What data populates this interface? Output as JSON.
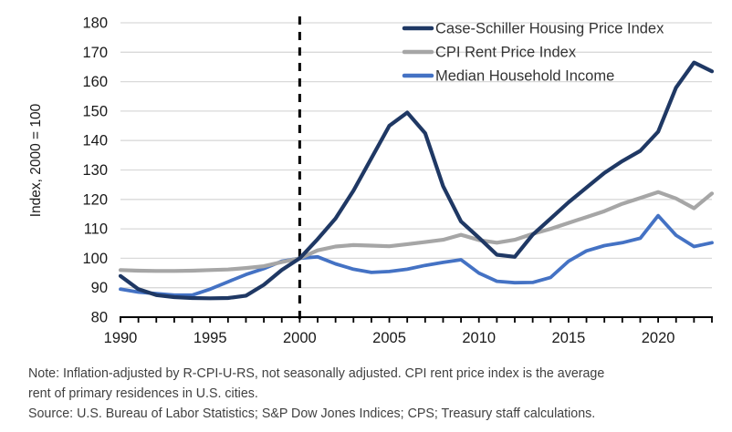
{
  "chart_data": {
    "type": "line",
    "title": "",
    "xlabel": "",
    "ylabel": "Index, 2000 = 100",
    "xlim": [
      1990,
      2023
    ],
    "ylim": [
      80,
      180
    ],
    "y_ticks": [
      80,
      90,
      100,
      110,
      120,
      130,
      140,
      150,
      160,
      170,
      180
    ],
    "x_labeled_ticks": [
      1990,
      1995,
      2000,
      2005,
      2010,
      2015,
      2020
    ],
    "x_minor_tick_every": 1,
    "grid": "horizontal",
    "legend_position": "top-right-inside",
    "x": [
      1990,
      1991,
      1992,
      1993,
      1994,
      1995,
      1996,
      1997,
      1998,
      1999,
      2000,
      2001,
      2002,
      2003,
      2004,
      2005,
      2006,
      2007,
      2008,
      2009,
      2010,
      2011,
      2012,
      2013,
      2014,
      2015,
      2016,
      2017,
      2018,
      2019,
      2020,
      2021,
      2022,
      2023
    ],
    "series": [
      {
        "name": "Case-Schiller Housing Price Index",
        "color": "#1F3864",
        "values": [
          94,
          89.5,
          87.5,
          86.8,
          86.5,
          86.4,
          86.5,
          87.3,
          91,
          96,
          100,
          106.5,
          113.5,
          123,
          134,
          145,
          149.5,
          142.5,
          124.5,
          112.5,
          107,
          101.2,
          100.5,
          108,
          113.5,
          119,
          124,
          129,
          133,
          136.5,
          143,
          158,
          166.5,
          163.5
        ]
      },
      {
        "name": "CPI Rent Price Index",
        "color": "#A6A6A6",
        "values": [
          96,
          95.8,
          95.7,
          95.7,
          95.8,
          96,
          96.2,
          96.7,
          97.3,
          98.7,
          100,
          102.7,
          104,
          104.5,
          104.3,
          104.1,
          104.8,
          105.5,
          106.3,
          108,
          106.2,
          105.3,
          106.3,
          108.3,
          110,
          112,
          114,
          116,
          118.5,
          120.5,
          122.5,
          120.3,
          117,
          122
        ]
      },
      {
        "name": "Median Household Income",
        "color": "#4472C4",
        "values": [
          89.5,
          88.5,
          88,
          87.5,
          87.5,
          89.5,
          92,
          94.5,
          96.5,
          99,
          100,
          100.5,
          98.1,
          96.3,
          95.2,
          95.5,
          96.3,
          97.6,
          98.6,
          99.5,
          95,
          92.2,
          91.7,
          91.8,
          93.5,
          99,
          102.5,
          104.3,
          105.3,
          106.8,
          114.5,
          107.8,
          104,
          105.3
        ]
      }
    ],
    "annotations": [
      {
        "type": "vline",
        "x": 2000,
        "style": "dashed",
        "color": "#000000"
      }
    ]
  },
  "colors": {
    "grid": "#D9D9D9",
    "axis": "#000000",
    "axis_text": "#1a1a1a",
    "legend_text": "#333333",
    "note_text": "#404040"
  },
  "notes": {
    "lines": [
      "Note: Inflation-adjusted by R-CPI-U-RS, not seasonally adjusted. CPI rent price index is the average",
      "rent of primary residences in U.S. cities.",
      "Source: U.S. Bureau of Labor Statistics; S&P Dow Jones Indices; CPS; Treasury staff calculations."
    ]
  }
}
